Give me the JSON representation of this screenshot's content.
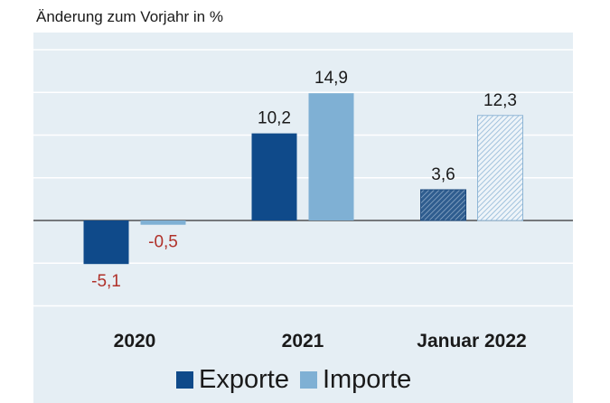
{
  "chart_data": {
    "type": "bar",
    "subtitle": "Änderung zum Vorjahr in %",
    "categories": [
      "2020",
      "2021",
      "Januar 2022"
    ],
    "series": [
      {
        "name": "Exporte",
        "values": [
          -5.1,
          10.2,
          3.6
        ],
        "labels": [
          "-5,1",
          "10,2",
          "3,6"
        ],
        "color": "#0f4a8a"
      },
      {
        "name": "Importe",
        "values": [
          -0.5,
          14.9,
          12.3
        ],
        "labels": [
          "-0,5",
          "14,9",
          "12,3"
        ],
        "color": "#7fb0d4"
      }
    ],
    "hatched_categories": [
      "Januar 2022"
    ],
    "ylim": [
      -10,
      20
    ],
    "grid": true,
    "legend_position": "bottom",
    "negative_label_color": "#b0312a"
  }
}
